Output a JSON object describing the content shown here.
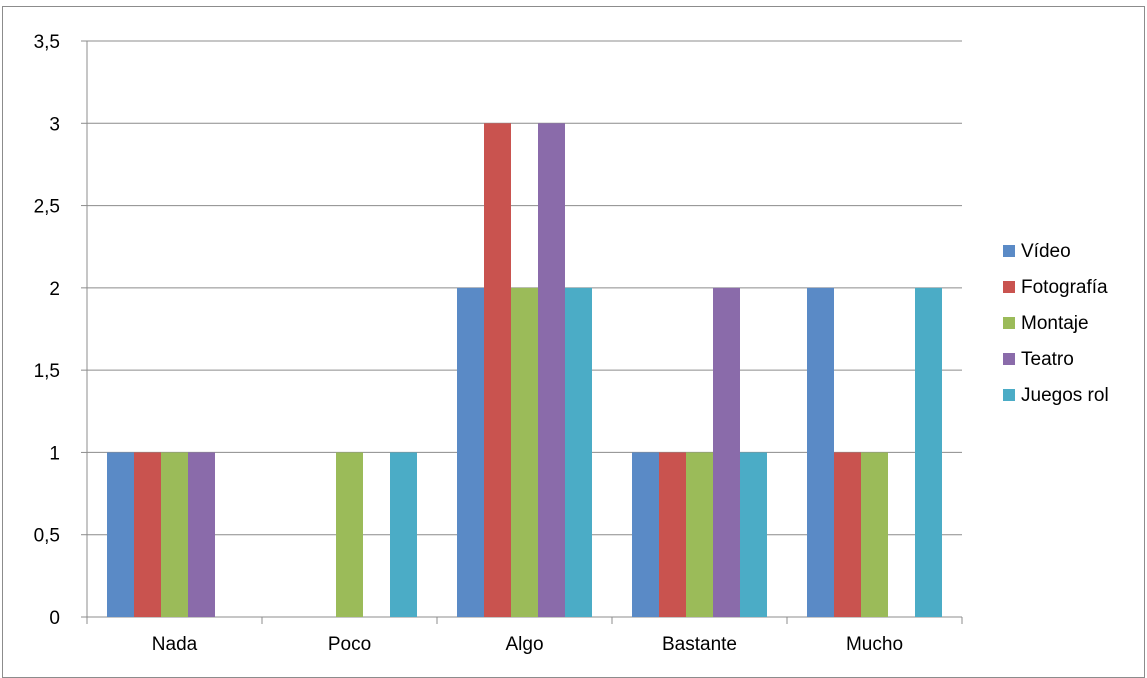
{
  "chart_data": {
    "type": "bar",
    "categories": [
      "Nada",
      "Poco",
      "Algo",
      "Bastante",
      "Mucho"
    ],
    "series": [
      {
        "name": "Vídeo",
        "color": "#5a8ac6",
        "values": [
          1,
          0,
          2,
          1,
          2
        ]
      },
      {
        "name": "Fotografía",
        "color": "#c9534f",
        "values": [
          1,
          0,
          3,
          1,
          1
        ]
      },
      {
        "name": "Montaje",
        "color": "#9bbb59",
        "values": [
          1,
          1,
          2,
          1,
          1
        ]
      },
      {
        "name": "Teatro",
        "color": "#8a6baa",
        "values": [
          1,
          0,
          3,
          2,
          0
        ]
      },
      {
        "name": "Juegos rol",
        "color": "#4bacc6",
        "values": [
          0,
          1,
          2,
          1,
          2
        ]
      }
    ],
    "y_ticks": [
      "0",
      "0,5",
      "1",
      "1,5",
      "2",
      "2,5",
      "3",
      "3,5"
    ],
    "ylim": [
      0,
      3.5
    ],
    "grid": true,
    "legend_position": "right"
  }
}
